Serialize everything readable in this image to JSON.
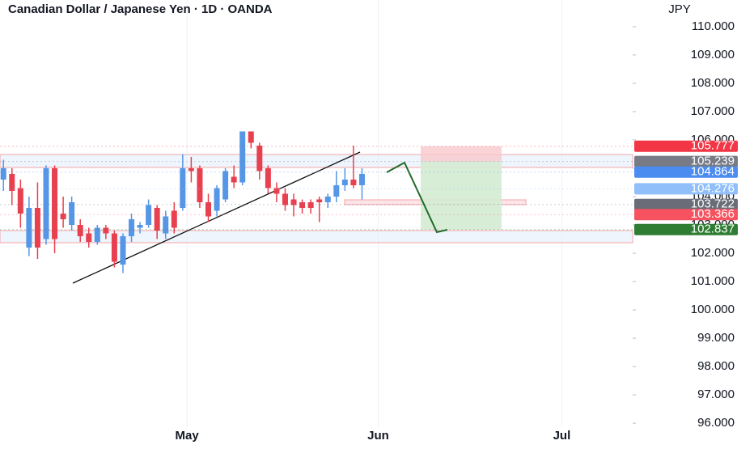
{
  "chart_data": {
    "type": "candlestick",
    "title": "Canadian Dollar / Japanese Yen · 1D · OANDA",
    "y_label": "JPY",
    "up_color": "#5596e6",
    "down_color": "#e8404f",
    "x": [
      0,
      1,
      2,
      3,
      4,
      5,
      6,
      7,
      8,
      9,
      10,
      11,
      12,
      13,
      14,
      15,
      16,
      17,
      18,
      19,
      20,
      21,
      22,
      23,
      24,
      25,
      26,
      27,
      28,
      29,
      30,
      31,
      32,
      33,
      34,
      35,
      36,
      37,
      38,
      39,
      40,
      41,
      42
    ],
    "open": [
      104.6,
      104.8,
      104.3,
      102.2,
      103.6,
      102.5,
      105.0,
      103.4,
      103.0,
      103.0,
      102.7,
      102.4,
      102.9,
      102.7,
      101.6,
      102.6,
      102.9,
      103.0,
      103.6,
      102.7,
      103.5,
      103.6,
      105.0,
      105.0,
      103.8,
      103.5,
      103.9,
      104.7,
      104.5,
      106.3,
      105.8,
      105.0,
      104.3,
      104.1,
      103.9,
      103.8,
      103.8,
      103.9,
      103.8,
      104.0,
      104.4,
      104.6,
      104.4
    ],
    "high": [
      105.3,
      105.0,
      104.6,
      104.0,
      104.5,
      105.1,
      105.1,
      104.0,
      104.0,
      103.2,
      102.9,
      103.0,
      103.0,
      102.8,
      102.7,
      103.4,
      103.1,
      103.9,
      103.7,
      103.5,
      103.8,
      105.5,
      105.4,
      105.1,
      104.1,
      104.4,
      105.0,
      105.1,
      106.3,
      106.3,
      105.9,
      105.1,
      104.5,
      104.3,
      104.1,
      103.9,
      103.9,
      104.0,
      104.1,
      104.9,
      105.0,
      105.8,
      105.0
    ],
    "low": [
      104.2,
      103.7,
      102.9,
      101.9,
      101.8,
      102.3,
      102.0,
      102.9,
      102.8,
      102.4,
      102.2,
      102.3,
      102.5,
      101.5,
      101.3,
      102.4,
      102.7,
      102.9,
      102.5,
      102.5,
      102.7,
      103.5,
      104.5,
      103.6,
      103.1,
      103.3,
      103.8,
      104.3,
      104.4,
      105.7,
      104.6,
      104.1,
      103.8,
      103.5,
      103.3,
      103.4,
      103.4,
      103.1,
      103.6,
      103.8,
      104.2,
      104.3,
      103.9
    ],
    "close": [
      105.0,
      104.2,
      103.4,
      103.6,
      102.2,
      105.0,
      102.5,
      103.2,
      103.8,
      102.6,
      102.4,
      102.9,
      102.7,
      101.7,
      102.6,
      103.2,
      103.0,
      103.7,
      102.8,
      103.3,
      102.9,
      105.0,
      104.9,
      103.8,
      103.3,
      104.3,
      104.9,
      104.5,
      106.3,
      105.9,
      104.9,
      104.3,
      104.1,
      103.7,
      103.7,
      103.6,
      103.6,
      103.8,
      104.0,
      104.4,
      104.6,
      104.4,
      104.8
    ],
    "xlim": [
      -0.4,
      73.7
    ],
    "xticks": [
      {
        "value": 21.5,
        "label": "May"
      },
      {
        "value": 43.9,
        "label": "Jun"
      },
      {
        "value": 65.4,
        "label": "Jul"
      }
    ],
    "ylim": [
      95.86,
      110.94
    ],
    "yticks": [
      {
        "value": 96,
        "label": "96.000"
      },
      {
        "value": 97,
        "label": "97.000"
      },
      {
        "value": 98,
        "label": "98.000"
      },
      {
        "value": 99,
        "label": "99.000"
      },
      {
        "value": 100,
        "label": "100.000"
      },
      {
        "value": 101,
        "label": "101.000"
      },
      {
        "value": 102,
        "label": "102.000"
      },
      {
        "value": 103,
        "label": "103.000"
      },
      {
        "value": 104,
        "label": "104.000"
      },
      {
        "value": 105,
        "label": "105.000"
      },
      {
        "value": 106,
        "label": "106.000"
      },
      {
        "value": 107,
        "label": "107.000"
      },
      {
        "value": 108,
        "label": "108.000"
      },
      {
        "value": 109,
        "label": "109.000"
      },
      {
        "value": 110,
        "label": "110.000"
      }
    ],
    "price_labels": [
      {
        "value": 105.777,
        "color": "#f23645"
      },
      {
        "value": 105.239,
        "color": "#787b86"
      },
      {
        "value": 104.864,
        "color": "#4a8cf0"
      },
      {
        "value": 104.276,
        "color": "#90bff9"
      },
      {
        "value": 103.722,
        "color": "#6a6d78"
      },
      {
        "value": 103.366,
        "color": "#f7525f"
      },
      {
        "value": 102.837,
        "color": "#2e7d32"
      }
    ]
  }
}
